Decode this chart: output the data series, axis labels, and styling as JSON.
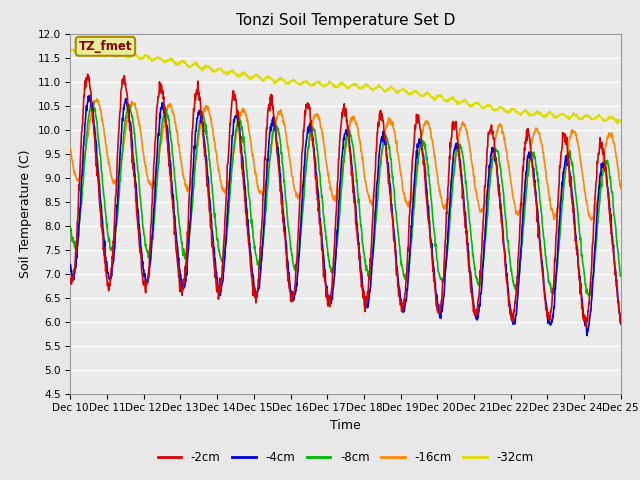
{
  "title": "Tonzi Soil Temperature Set D",
  "xlabel": "Time",
  "ylabel": "Soil Temperature (C)",
  "ylim": [
    4.5,
    12.0
  ],
  "yticks": [
    4.5,
    5.0,
    5.5,
    6.0,
    6.5,
    7.0,
    7.5,
    8.0,
    8.5,
    9.0,
    9.5,
    10.0,
    10.5,
    11.0,
    11.5,
    12.0
  ],
  "legend_labels": [
    "-2cm",
    "-4cm",
    "-8cm",
    "-16cm",
    "-32cm"
  ],
  "legend_colors": [
    "#dd0000",
    "#0000dd",
    "#00bb00",
    "#ff8800",
    "#dddd00"
  ],
  "line_widths": [
    1.2,
    1.2,
    1.2,
    1.2,
    1.2
  ],
  "annotation_text": "TZ_fmet",
  "annotation_box_color": "#eeee99",
  "annotation_box_edge": "#aa8800",
  "background_color": "#e8e8e8",
  "plot_bg_color": "#ebebeb",
  "n_days": 15,
  "n_points_per_day": 96,
  "start_day": 10,
  "grid_color": "#ffffff",
  "tick_label_size": 7.5,
  "axis_label_size": 9,
  "title_size": 11
}
